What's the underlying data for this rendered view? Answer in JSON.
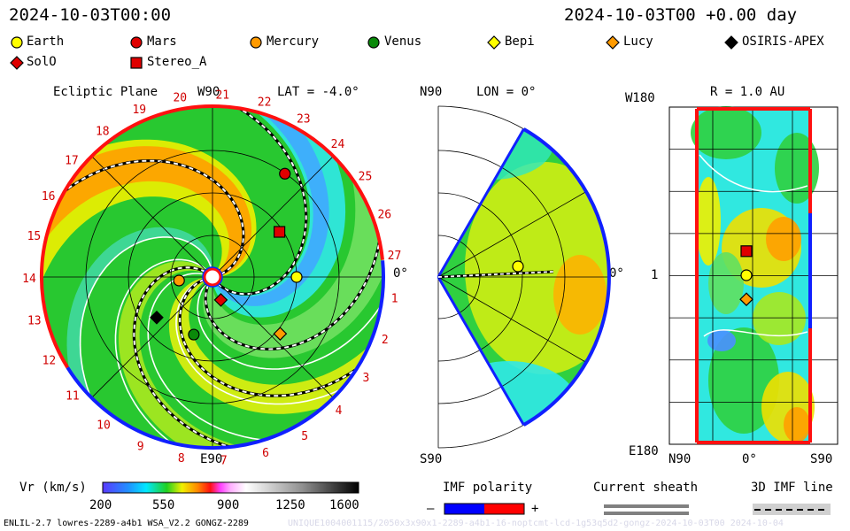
{
  "header": {
    "left_time": "2024-10-03T00:00",
    "right_time": "2024-10-03T00 +0.00 day"
  },
  "legend": {
    "items": [
      {
        "name": "Earth",
        "marker": "circle",
        "color": "#ffff00"
      },
      {
        "name": "Mars",
        "marker": "circle",
        "color": "#e00000"
      },
      {
        "name": "Mercury",
        "marker": "circle",
        "color": "#ff9a00"
      },
      {
        "name": "Venus",
        "marker": "circle",
        "color": "#0a8a0a"
      },
      {
        "name": "Bepi",
        "marker": "diamond",
        "color": "#ffff00"
      },
      {
        "name": "Lucy",
        "marker": "diamond",
        "color": "#ff9a00"
      },
      {
        "name": "OSIRIS-APEX",
        "marker": "diamond",
        "color": "#000000"
      },
      {
        "name": "SolO",
        "marker": "diamond",
        "color": "#e00000"
      },
      {
        "name": "Stereo_A",
        "marker": "square",
        "color": "#e00000"
      }
    ]
  },
  "panels": {
    "ecliptic": {
      "title": "Ecliptic Plane",
      "lat_label": "LAT = -4.0°",
      "top_label": "W90",
      "bottom_label": "E90",
      "right_label": "0°"
    },
    "meridional": {
      "top_label": "N90",
      "lon_label": "LON = 0°",
      "bottom_label": "S90",
      "right_label": "0°"
    },
    "synoptic": {
      "r_label": "R = 1.0 AU",
      "top_left": "W180",
      "mid_left": "1",
      "bottom_left": "E180",
      "x_left": "N90",
      "x_mid": "0°",
      "x_right": "S90"
    }
  },
  "colorbar": {
    "label": "Vr (km/s)",
    "ticks": [
      "200",
      "550",
      "900",
      "1250",
      "1600"
    ],
    "range": [
      200,
      1600
    ]
  },
  "imf": {
    "label": "IMF polarity",
    "minus": "–",
    "plus": "+",
    "neg_color": "#0000ff",
    "pos_color": "#ff0000"
  },
  "sheath": {
    "label": "Current sheath"
  },
  "imf3d": {
    "label": "3D IMF line"
  },
  "footer": {
    "left": "ENLIL-2.7 lowres-2289-a4b1 WSA_V2.2 GONGZ-2289",
    "right": "UNIQUE1004001115/2050x3x90x1-2289-a4b1-16-noptcmt-lcd-1g53q5d2-gongz-2024-10-03T00  2024-10-04"
  },
  "chart_data": {
    "type": "heatmap",
    "quantity": "Vr (km/s)",
    "color_range": [
      200,
      1600
    ],
    "carrington_ticks": [
      "1",
      "2",
      "3",
      "4",
      "5",
      "6",
      "7",
      "8",
      "9",
      "10",
      "11",
      "12",
      "13",
      "14",
      "15",
      "16",
      "17",
      "18",
      "19",
      "20",
      "21",
      "22",
      "23",
      "24",
      "25",
      "26",
      "27"
    ],
    "bodies_ecliptic": [
      {
        "name": "Earth",
        "r_au": 1.0,
        "angle_deg": 0
      },
      {
        "name": "Mars",
        "r_au": 1.5,
        "angle_deg": 55
      },
      {
        "name": "Mercury",
        "r_au": 0.4,
        "angle_deg": 186
      },
      {
        "name": "Venus",
        "r_au": 0.72,
        "angle_deg": 252
      },
      {
        "name": "Lucy",
        "r_au": 1.05,
        "angle_deg": -40
      },
      {
        "name": "OSIRIS-APEX",
        "r_au": 0.82,
        "angle_deg": 216
      },
      {
        "name": "SolO",
        "r_au": 0.29,
        "angle_deg": -70
      },
      {
        "name": "Stereo_A",
        "r_au": 0.96,
        "angle_deg": 34
      }
    ],
    "bodies_synoptic": [
      {
        "name": "Earth",
        "lat_deg": 0,
        "lon_deg": 0
      },
      {
        "name": "Stereo_A",
        "lat_deg": 0,
        "lon_deg": 16
      },
      {
        "name": "Lucy",
        "lat_deg": 0,
        "lon_deg": -16
      }
    ]
  }
}
